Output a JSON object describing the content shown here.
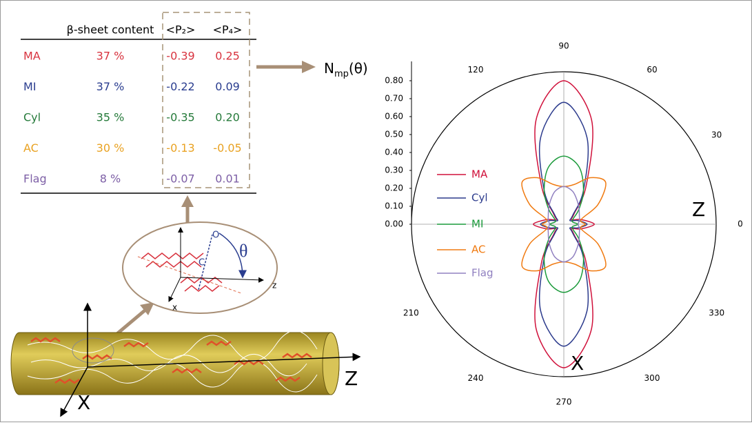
{
  "table": {
    "header": [
      "β-sheet content",
      "<P₂>",
      "<P₄>"
    ],
    "rows": [
      {
        "label": "MA",
        "color": "#d8333f",
        "cells": [
          "37 %",
          "-0.39",
          "0.25"
        ]
      },
      {
        "label": "MI",
        "color": "#2a3d8f",
        "cells": [
          "37 %",
          "-0.22",
          "0.09"
        ]
      },
      {
        "label": "Cyl",
        "color": "#257a3a",
        "cells": [
          "35 %",
          "-0.35",
          "0.20"
        ]
      },
      {
        "label": "AC",
        "color": "#e9a222",
        "cells": [
          "30 %",
          "-0.13",
          "-0.05"
        ]
      },
      {
        "label": "Flag",
        "color": "#7d5fa6",
        "cells": [
          "8 %",
          "-0.07",
          "0.01"
        ]
      }
    ]
  },
  "arrow_label": {
    "main": "N",
    "sub": "mp",
    "arg": "(θ)"
  },
  "diagram": {
    "theta": "θ",
    "z": "z",
    "x": "x",
    "o": "O",
    "c": "C",
    "big_z": "Z",
    "big_x": "X"
  },
  "chart_data": {
    "type": "polar",
    "x": [
      0,
      15,
      30,
      45,
      60,
      75,
      90,
      105,
      120,
      135,
      150,
      165,
      180,
      195,
      210,
      225,
      240,
      255,
      270,
      285,
      300,
      315,
      330,
      345
    ],
    "ylim": [
      0,
      0.85
    ],
    "yticks": [
      {
        "value": 0,
        "label": "0.00"
      },
      {
        "value": 0.1,
        "label": "0.10"
      },
      {
        "value": 0.2,
        "label": "0.20"
      },
      {
        "value": 0.3,
        "label": "0.30"
      },
      {
        "value": 0.4,
        "label": "0.40"
      },
      {
        "value": 0.5,
        "label": "0.50"
      },
      {
        "value": 0.6,
        "label": "0.60"
      },
      {
        "value": 0.7,
        "label": "0.70"
      },
      {
        "value": 0.8,
        "label": "0.80"
      }
    ],
    "xticks": [
      0,
      30,
      60,
      90,
      120,
      210,
      240,
      270,
      300,
      330
    ],
    "grid": true,
    "axis_labels": {
      "right": "Z",
      "bottom": "X"
    },
    "series": [
      {
        "name": "MA",
        "color": "#d0103a",
        "values": [
          0.17,
          0.1,
          0.05,
          0.08,
          0.25,
          0.6,
          0.8,
          0.6,
          0.25,
          0.08,
          0.05,
          0.1,
          0.17,
          0.1,
          0.05,
          0.08,
          0.25,
          0.6,
          0.8,
          0.6,
          0.25,
          0.08,
          0.05,
          0.1
        ]
      },
      {
        "name": "Cyl",
        "color": "#2b3a8c",
        "values": [
          0.13,
          0.08,
          0.04,
          0.07,
          0.22,
          0.5,
          0.68,
          0.5,
          0.22,
          0.07,
          0.04,
          0.08,
          0.13,
          0.08,
          0.04,
          0.07,
          0.22,
          0.5,
          0.68,
          0.5,
          0.22,
          0.07,
          0.04,
          0.08
        ]
      },
      {
        "name": "MI",
        "color": "#1a9a3a",
        "values": [
          0.08,
          0.05,
          0.06,
          0.12,
          0.22,
          0.33,
          0.38,
          0.33,
          0.22,
          0.12,
          0.06,
          0.05,
          0.08,
          0.05,
          0.06,
          0.12,
          0.22,
          0.33,
          0.38,
          0.33,
          0.22,
          0.12,
          0.06,
          0.05
        ]
      },
      {
        "name": "AC",
        "color": "#f07a10",
        "values": [
          0.12,
          0.1,
          0.22,
          0.33,
          0.3,
          0.23,
          0.21,
          0.23,
          0.3,
          0.33,
          0.22,
          0.1,
          0.12,
          0.1,
          0.22,
          0.33,
          0.3,
          0.23,
          0.21,
          0.23,
          0.3,
          0.33,
          0.22,
          0.1
        ]
      },
      {
        "name": "Flag",
        "color": "#9080c0",
        "values": [
          0.08,
          0.09,
          0.1,
          0.12,
          0.15,
          0.19,
          0.21,
          0.19,
          0.15,
          0.12,
          0.1,
          0.09,
          0.08,
          0.09,
          0.1,
          0.12,
          0.15,
          0.19,
          0.21,
          0.19,
          0.15,
          0.12,
          0.1,
          0.09
        ]
      }
    ]
  }
}
